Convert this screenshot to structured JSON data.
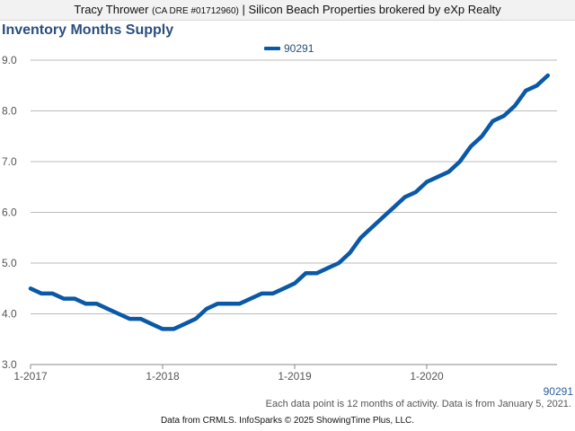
{
  "header": {
    "agent_name": "Tracy Thrower",
    "license": "(CA DRE #01712960)",
    "separator": "|",
    "brokerage": "Silicon Beach Properties brokered by eXp Realty"
  },
  "colors": {
    "line": "#0a58a8",
    "title": "#2a4f7e",
    "grid": "#bbbbbb"
  },
  "chart_data": {
    "type": "line",
    "title": "Inventory Months Supply",
    "xlabel": "",
    "ylabel": "",
    "ylim": [
      3.0,
      9.0
    ],
    "yticks": [
      "3.0",
      "4.0",
      "5.0",
      "6.0",
      "7.0",
      "8.0",
      "9.0"
    ],
    "xticks": [
      {
        "label": "1-2017",
        "index": 0
      },
      {
        "label": "1-2018",
        "index": 12
      },
      {
        "label": "1-2019",
        "index": 24
      },
      {
        "label": "1-2020",
        "index": 36
      }
    ],
    "legend": "top-center",
    "series": [
      {
        "name": "90291",
        "values": [
          4.5,
          4.4,
          4.4,
          4.3,
          4.3,
          4.2,
          4.2,
          4.1,
          4.0,
          3.9,
          3.9,
          3.8,
          3.7,
          3.7,
          3.8,
          3.9,
          4.1,
          4.2,
          4.2,
          4.2,
          4.3,
          4.4,
          4.4,
          4.5,
          4.6,
          4.8,
          4.8,
          4.9,
          5.0,
          5.2,
          5.5,
          5.7,
          5.9,
          6.1,
          6.3,
          6.4,
          6.6,
          6.7,
          6.8,
          7.0,
          7.3,
          7.5,
          7.8,
          7.9,
          8.1,
          8.4,
          8.5,
          8.7
        ]
      }
    ]
  },
  "footer": {
    "series_label": "90291",
    "note": "Each data point is 12 months of activity. Data is from January 5, 2021.",
    "credits": "Data from CRMLS. InfoSparks © 2025 ShowingTime Plus, LLC."
  }
}
